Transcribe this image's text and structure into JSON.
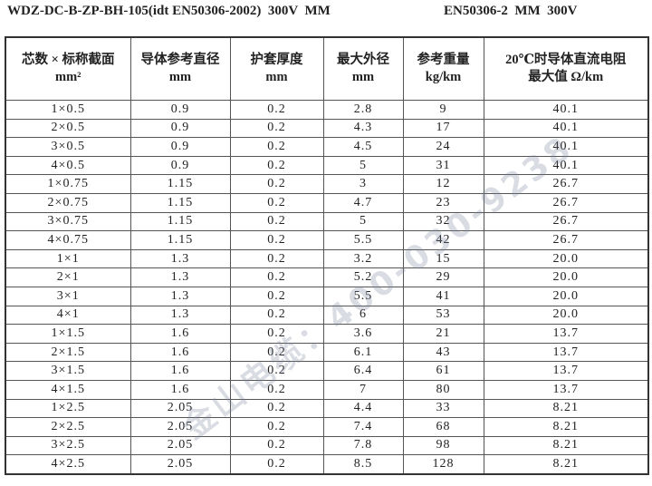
{
  "title_left": "WDZ-DC-B-ZP-BH-105(idt EN50306-2002)  300V  MM",
  "title_right": "EN50306-2  MM  300V",
  "watermark": "金山电缆：400-030-9238",
  "table": {
    "header": [
      [
        "芯数 × 标称截面",
        "mm²"
      ],
      [
        "导体参考直径",
        "mm"
      ],
      [
        "护套厚度",
        "mm"
      ],
      [
        "最大外径",
        "mm"
      ],
      [
        "参考重量",
        "kg/km"
      ],
      [
        "20℃时导体直流电阻",
        "最大值 Ω/km"
      ]
    ],
    "rows": [
      [
        "1×0.5",
        "0.9",
        "0.2",
        "2.8",
        "9",
        "40.1"
      ],
      [
        "2×0.5",
        "0.9",
        "0.2",
        "4.3",
        "17",
        "40.1"
      ],
      [
        "3×0.5",
        "0.9",
        "0.2",
        "4.5",
        "24",
        "40.1"
      ],
      [
        "4×0.5",
        "0.9",
        "0.2",
        "5",
        "31",
        "40.1"
      ],
      [
        "1×0.75",
        "1.15",
        "0.2",
        "3",
        "12",
        "26.7"
      ],
      [
        "2×0.75",
        "1.15",
        "0.2",
        "4.7",
        "23",
        "26.7"
      ],
      [
        "3×0.75",
        "1.15",
        "0.2",
        "5",
        "32",
        "26.7"
      ],
      [
        "4×0.75",
        "1.15",
        "0.2",
        "5.5",
        "42",
        "26.7"
      ],
      [
        "1×1",
        "1.3",
        "0.2",
        "3.2",
        "15",
        "20.0"
      ],
      [
        "2×1",
        "1.3",
        "0.2",
        "5.2",
        "29",
        "20.0"
      ],
      [
        "3×1",
        "1.3",
        "0.2",
        "5.5",
        "41",
        "20.0"
      ],
      [
        "4×1",
        "1.3",
        "0.2",
        "6",
        "53",
        "20.0"
      ],
      [
        "1×1.5",
        "1.6",
        "0.2",
        "3.6",
        "21",
        "13.7"
      ],
      [
        "2×1.5",
        "1.6",
        "0.2",
        "6.1",
        "43",
        "13.7"
      ],
      [
        "3×1.5",
        "1.6",
        "0.2",
        "6.4",
        "61",
        "13.7"
      ],
      [
        "4×1.5",
        "1.6",
        "0.2",
        "7",
        "80",
        "13.7"
      ],
      [
        "1×2.5",
        "2.05",
        "0.2",
        "4.4",
        "33",
        "8.21"
      ],
      [
        "2×2.5",
        "2.05",
        "0.2",
        "7.4",
        "68",
        "8.21"
      ],
      [
        "3×2.5",
        "2.05",
        "0.2",
        "7.8",
        "98",
        "8.21"
      ],
      [
        "4×2.5",
        "2.05",
        "0.2",
        "8.5",
        "128",
        "8.21"
      ]
    ]
  }
}
